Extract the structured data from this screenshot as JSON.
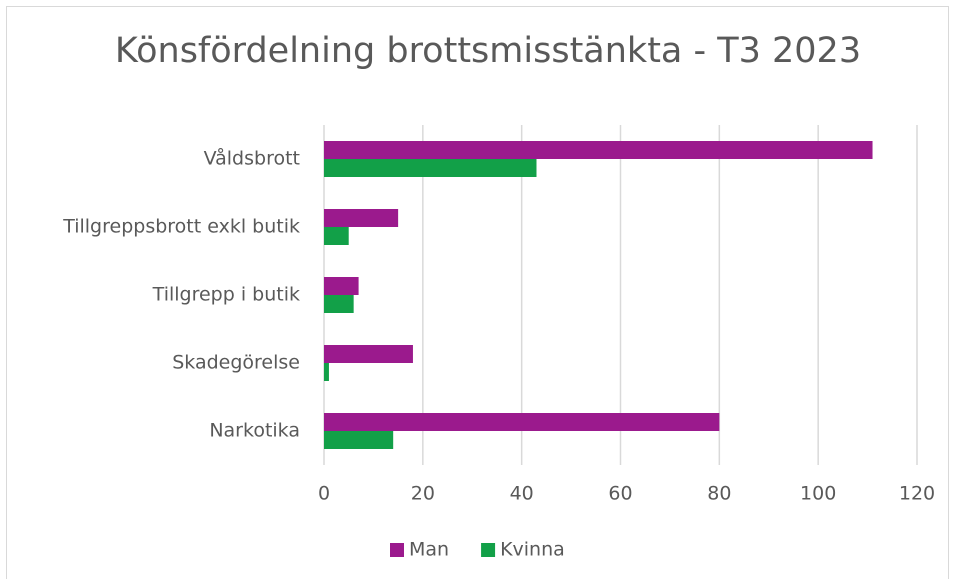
{
  "chart_data": {
    "type": "hbar",
    "title": "Könsfördelning brottsmisstänkta - T3 2023",
    "categories": [
      "Våldsbrott",
      "Tillgreppsbrott exkl butik",
      "Tillgrepp i butik",
      "Skadegörelse",
      "Narkotika"
    ],
    "series": [
      {
        "name": "Man",
        "color": "#9b1a8d",
        "values": [
          111,
          15,
          7,
          18,
          80
        ]
      },
      {
        "name": "Kvinna",
        "color": "#12a048",
        "values": [
          43,
          5,
          6,
          1,
          14
        ]
      }
    ],
    "xlim": [
      0,
      120
    ],
    "xticks": [
      0,
      20,
      40,
      60,
      80,
      100,
      120
    ],
    "grid": true,
    "legend": "bottom"
  }
}
